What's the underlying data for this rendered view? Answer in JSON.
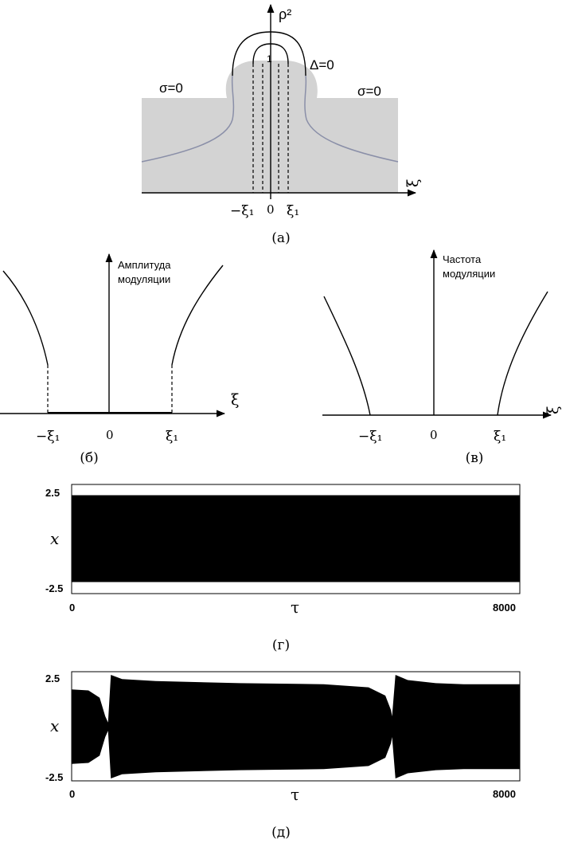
{
  "panel_a": {
    "caption": "(а)",
    "y_axis_label": "ρ²",
    "x_axis_label": "ξ",
    "curve_labels": {
      "delta": "Δ=0",
      "sigma_left": "σ=0",
      "sigma_right": "σ=0",
      "one": "1"
    },
    "ticks": [
      "−ξ₁",
      "0",
      "ξ₁"
    ],
    "colors": {
      "region_fill": "#d3d3d3",
      "sigma_curve": "#8a8fa8"
    }
  },
  "panel_b": {
    "caption": "(б)",
    "y_axis_label": [
      "Амплитуда",
      "модуляции"
    ],
    "x_axis_label": "ξ",
    "ticks": [
      "−ξ₁",
      "0",
      "ξ₁"
    ]
  },
  "panel_v": {
    "caption": "(в)",
    "y_axis_label": [
      "Частота",
      "модуляции"
    ],
    "x_axis_label": "ξ",
    "ticks": [
      "−ξ₁",
      "0",
      "ξ₁"
    ]
  },
  "panel_g": {
    "caption": "(г)",
    "y_label": "x",
    "x_label": "τ",
    "yticks": [
      "2.5",
      "-2.5"
    ],
    "xticks": [
      "0",
      "8000"
    ]
  },
  "panel_d": {
    "caption": "(д)",
    "y_label": "x",
    "x_label": "τ",
    "yticks": [
      "2.5",
      "-2.5"
    ],
    "xticks": [
      "0",
      "8000"
    ]
  },
  "chart_data": [
    {
      "type": "area",
      "title": "",
      "xlabel": "τ",
      "ylabel": "x",
      "xlim": [
        0,
        8000
      ],
      "ylim": [
        -2.5,
        2.5
      ],
      "series": [
        {
          "x": [
            0,
            8000
          ],
          "upper": [
            2.2,
            2.2
          ],
          "lower": [
            -2.2,
            -2.2
          ]
        }
      ]
    },
    {
      "type": "area",
      "title": "",
      "xlabel": "τ",
      "ylabel": "x",
      "xlim": [
        0,
        8000
      ],
      "ylim": [
        -2.5,
        2.5
      ],
      "series": [
        {
          "x": [
            0,
            300,
            500,
            600,
            650,
            700,
            900,
            1500,
            3000,
            4500,
            5300,
            5600,
            5700,
            5720,
            5780,
            6000,
            6500,
            7000,
            8000
          ],
          "upper": [
            1.8,
            1.75,
            1.4,
            0.5,
            0.2,
            2.5,
            2.3,
            2.2,
            2.1,
            2.05,
            1.9,
            1.5,
            0.8,
            0.5,
            2.5,
            2.25,
            2.1,
            2.05,
            2.05
          ],
          "lower": [
            -1.8,
            -1.75,
            -1.4,
            -0.5,
            -0.2,
            -2.5,
            -2.3,
            -2.2,
            -2.1,
            -2.05,
            -1.9,
            -1.5,
            -0.8,
            -0.5,
            -2.5,
            -2.25,
            -2.1,
            -2.05,
            -2.05
          ]
        }
      ]
    }
  ]
}
